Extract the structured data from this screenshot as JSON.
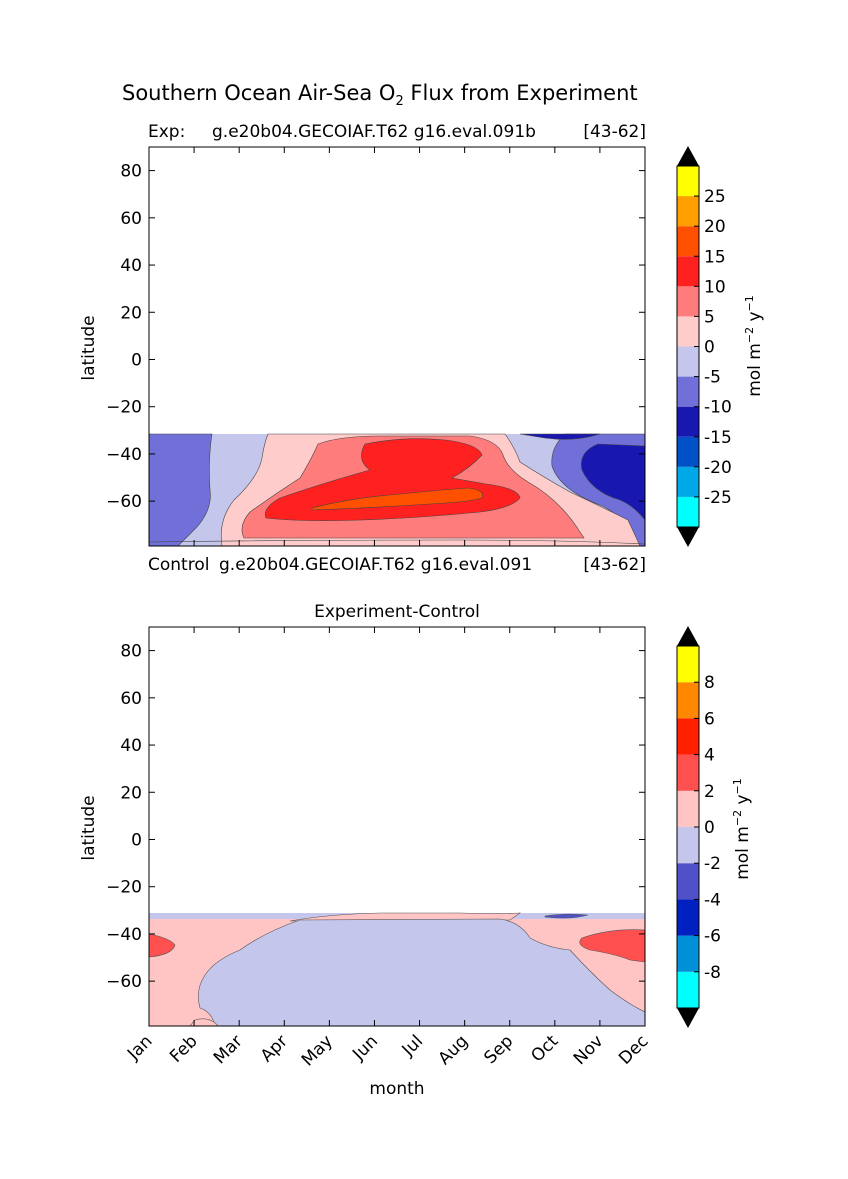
{
  "figure": {
    "title_main": "Southern Ocean Air-Sea O",
    "title_sub": "2",
    "title_rest": " Flux from Experiment"
  },
  "chart_data": [
    {
      "type": "contour",
      "panel": "top",
      "title_left": "Exp:",
      "title_center": "g.e20b04.GECOIAF.T62 g16.eval.091b",
      "title_right": "[43-62]",
      "subtitle_left": "Control",
      "subtitle_center": "g.e20b04.GECOIAF.T62 g16.eval.091",
      "subtitle_right": "[43-62]",
      "xlabel": "",
      "ylabel": "latitude",
      "x_range": [
        0,
        11
      ],
      "ylim": [
        -79,
        90
      ],
      "yticks": [
        80,
        60,
        40,
        20,
        0,
        -20,
        -40,
        -60
      ],
      "ytick_labels": [
        "80",
        "60",
        "40",
        "20",
        "0",
        "−20",
        "−40",
        "−60"
      ],
      "data_lat_top": -32,
      "colorbar": {
        "label": "mol m",
        "label_sup1": "−2",
        "label_mid": " y",
        "label_sup2": "−1",
        "tick_labels": [
          "25",
          "20",
          "15",
          "10",
          "5",
          "0",
          "-5",
          "-10",
          "-15",
          "-20",
          "-25"
        ],
        "colors": [
          "#00ffff",
          "#00a8e8",
          "#0050c8",
          "#1818b0",
          "#7070d8",
          "#c4c6ec",
          "#ffcccc",
          "#ff7c7c",
          "#ff2020",
          "#ff5000",
          "#ffa000",
          "#ffff00"
        ]
      },
      "regions": [
        {
          "name": "negative-weak",
          "level": "-5 to 0",
          "color": "#c4c6ec"
        },
        {
          "name": "negative-mod",
          "level": "-10 to -5",
          "color": "#7070d8"
        },
        {
          "name": "negative-strong",
          "level": "-15 to -10",
          "color": "#1818b0"
        },
        {
          "name": "positive-weak",
          "level": "0 to 5",
          "color": "#ffcccc"
        },
        {
          "name": "positive-mod",
          "level": "5 to 10",
          "color": "#ff7c7c"
        },
        {
          "name": "positive-strong",
          "level": "10 to 15",
          "color": "#ff2020"
        },
        {
          "name": "positive-max",
          "level": "15 to 20",
          "color": "#ff5000"
        }
      ]
    },
    {
      "type": "contour",
      "panel": "bottom",
      "title": "Experiment-Control",
      "xlabel": "month",
      "ylabel": "latitude",
      "x_range": [
        0,
        11
      ],
      "ylim": [
        -79,
        90
      ],
      "yticks": [
        80,
        60,
        40,
        20,
        0,
        -20,
        -40,
        -60
      ],
      "ytick_labels": [
        "80",
        "60",
        "40",
        "20",
        "0",
        "−20",
        "−40",
        "−60"
      ],
      "xtick_labels": [
        "Jan",
        "Feb",
        "Mar",
        "Apr",
        "May",
        "Jun",
        "Jul",
        "Aug",
        "Sep",
        "Oct",
        "Nov",
        "Dec"
      ],
      "data_lat_top": -32,
      "colorbar": {
        "label": "mol m",
        "label_sup1": "−2",
        "label_mid": " y",
        "label_sup2": "−1",
        "tick_labels": [
          "8",
          "6",
          "4",
          "2",
          "0",
          "-2",
          "-4",
          "-6",
          "-8"
        ],
        "colors": [
          "#00ffff",
          "#0090d8",
          "#0020c0",
          "#5050c8",
          "#c4c6ec",
          "#ffc4c4",
          "#ff5050",
          "#ff2000",
          "#ff8800",
          "#ffff00"
        ]
      },
      "regions": [
        {
          "name": "negative-weak",
          "level": "-2 to 0",
          "color": "#c4c6ec"
        },
        {
          "name": "negative-mod",
          "level": "-4 to -2",
          "color": "#5050c8"
        },
        {
          "name": "positive-weak",
          "level": "0 to 2",
          "color": "#ffc4c4"
        },
        {
          "name": "positive-mod",
          "level": "2 to 4",
          "color": "#ff5050"
        }
      ]
    }
  ]
}
